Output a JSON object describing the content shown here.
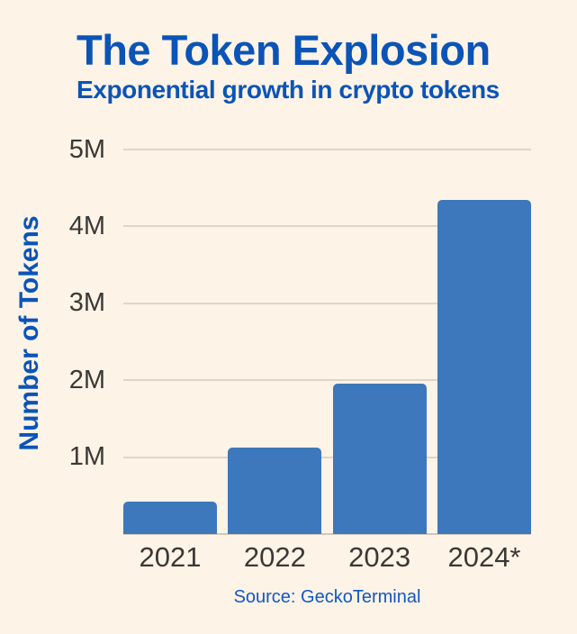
{
  "page": {
    "background_color": "#FDF3E7"
  },
  "header": {
    "title": "The Token Explosion",
    "subtitle": "Exponential growth in crypto tokens",
    "accent_color": "#0B54B7"
  },
  "chart_data": {
    "type": "bar",
    "title": "The Token Explosion",
    "subtitle": "Exponential growth in crypto tokens",
    "ylabel": "Number of Tokens",
    "xlabel": "",
    "categories": [
      "2021",
      "2022",
      "2023",
      "2024*"
    ],
    "values_millions": [
      0.42,
      1.13,
      1.96,
      4.34
    ],
    "unit": "M tokens",
    "ylim": [
      0,
      5
    ],
    "yticks": [
      "5M",
      "4M",
      "3M",
      "2M",
      "1M"
    ],
    "ytick_values": [
      5,
      4,
      3,
      2,
      1
    ],
    "grid": "horizontal gridlines on",
    "legend": "none",
    "bar_color": "#3D78BC",
    "gridline_color": "#DED6CA",
    "axis_line_color": "#D2C8B9",
    "tick_label_color": "#3B3835"
  },
  "footer": {
    "source": "Source: GeckoTerminal",
    "source_color": "#1158C6"
  }
}
